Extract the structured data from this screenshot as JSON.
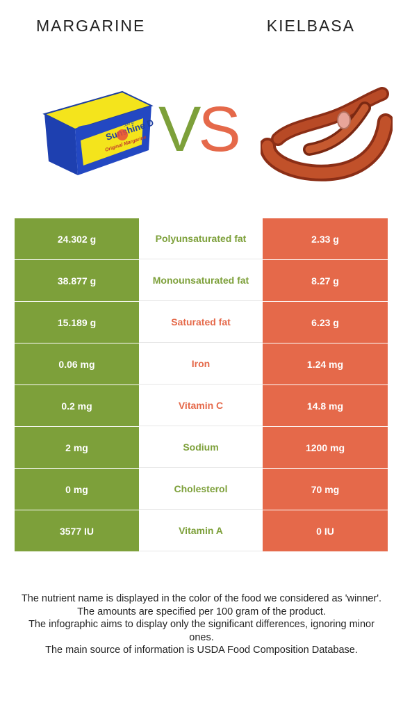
{
  "header": {
    "left_food": "MARGARINE",
    "right_food": "KIELBASA",
    "vs_v": "V",
    "vs_s": "S"
  },
  "colors": {
    "left": "#7da03a",
    "right": "#e5694a"
  },
  "product_label": {
    "brand": "Sunshine D",
    "subtitle": "Original Margarine",
    "weight": "500 g"
  },
  "rows": [
    {
      "left": "24.302 g",
      "nutrient": "Polyunsaturated fat",
      "right": "2.33 g",
      "winner": "left"
    },
    {
      "left": "38.877 g",
      "nutrient": "Monounsaturated fat",
      "right": "8.27 g",
      "winner": "left"
    },
    {
      "left": "15.189 g",
      "nutrient": "Saturated fat",
      "right": "6.23 g",
      "winner": "right"
    },
    {
      "left": "0.06 mg",
      "nutrient": "Iron",
      "right": "1.24 mg",
      "winner": "right"
    },
    {
      "left": "0.2 mg",
      "nutrient": "Vitamin C",
      "right": "14.8 mg",
      "winner": "right"
    },
    {
      "left": "2 mg",
      "nutrient": "Sodium",
      "right": "1200 mg",
      "winner": "left"
    },
    {
      "left": "0 mg",
      "nutrient": "Cholesterol",
      "right": "70 mg",
      "winner": "left"
    },
    {
      "left": "3577 IU",
      "nutrient": "Vitamin A",
      "right": "0 IU",
      "winner": "left"
    }
  ],
  "footer": {
    "line1": "The nutrient name is displayed in the color of the food we considered as 'winner'.",
    "line2": "The amounts are specified per 100 gram of the product.",
    "line3": "The infographic aims to display only the significant differences, ignoring minor ones.",
    "line4": "The main source of information is USDA Food Composition Database."
  }
}
